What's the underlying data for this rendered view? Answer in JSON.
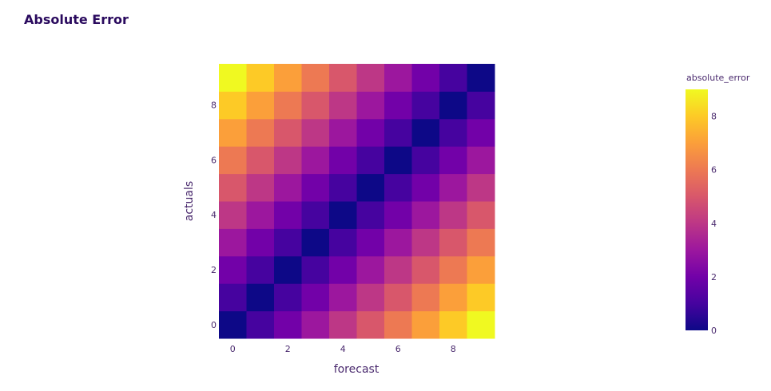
{
  "chart_data": {
    "type": "heatmap",
    "title": "Absolute Error",
    "xlabel": "forecast",
    "ylabel": "actuals",
    "x": [
      0,
      1,
      2,
      3,
      4,
      5,
      6,
      7,
      8,
      9
    ],
    "y": [
      0,
      1,
      2,
      3,
      4,
      5,
      6,
      7,
      8,
      9
    ],
    "x_ticks": [
      "0",
      "2",
      "4",
      "6",
      "8"
    ],
    "y_ticks": [
      "0",
      "2",
      "4",
      "6",
      "8"
    ],
    "z": [
      [
        0,
        1,
        2,
        3,
        4,
        5,
        6,
        7,
        8,
        9
      ],
      [
        1,
        0,
        1,
        2,
        3,
        4,
        5,
        6,
        7,
        8
      ],
      [
        2,
        1,
        0,
        1,
        2,
        3,
        4,
        5,
        6,
        7
      ],
      [
        3,
        2,
        1,
        0,
        1,
        2,
        3,
        4,
        5,
        6
      ],
      [
        4,
        3,
        2,
        1,
        0,
        1,
        2,
        3,
        4,
        5
      ],
      [
        5,
        4,
        3,
        2,
        1,
        0,
        1,
        2,
        3,
        4
      ],
      [
        6,
        5,
        4,
        3,
        2,
        1,
        0,
        1,
        2,
        3
      ],
      [
        7,
        6,
        5,
        4,
        3,
        2,
        1,
        0,
        1,
        2
      ],
      [
        8,
        7,
        6,
        5,
        4,
        3,
        2,
        1,
        0,
        1
      ],
      [
        9,
        8,
        7,
        6,
        5,
        4,
        3,
        2,
        1,
        0
      ]
    ],
    "zlim": [
      0,
      9
    ],
    "colorbar": {
      "title": "absolute_error",
      "ticks": [
        "0",
        "2",
        "4",
        "6",
        "8"
      ],
      "colorscale": [
        "#0d0887",
        "#46039f",
        "#7201a8",
        "#9c179e",
        "#bd3786",
        "#d8576b",
        "#ed7953",
        "#fb9f3a",
        "#fdca26",
        "#f0f921"
      ]
    },
    "legend": "right"
  }
}
